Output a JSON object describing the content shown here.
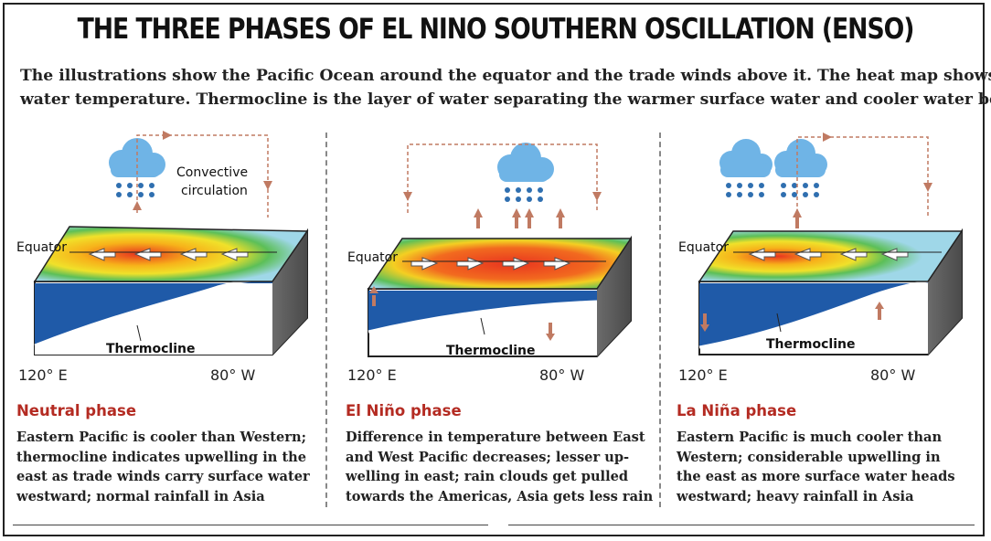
{
  "title": "THE THREE PHASES OF EL NINO SOUTHERN OSCILLATION (ENSO)",
  "subtitle": [
    "The illustrations show the Pacific Ocean around the equator and the trade winds above it. The heat map shows",
    "water temperature. Thermocline is the layer of water separating the warmer surface water and cooler water below"
  ],
  "labels": {
    "equator": "Equator",
    "thermocline": "Thermocline",
    "west": "120° E",
    "east": "80° W",
    "convective": [
      "Convective",
      "circulation"
    ]
  },
  "phases": [
    {
      "name": "Neutral phase",
      "description": [
        "Eastern Pacific is cooler than Western;",
        "thermocline indicates upwelling in the",
        "east as trade winds carry surface water",
        "westward; normal rainfall in Asia"
      ]
    },
    {
      "name": "El Niño phase",
      "description": [
        "Difference in temperature between East",
        "and West Pacific decreases; lesser up-",
        "welling in east; rain clouds get pulled",
        "towards the Americas, Asia gets less rain"
      ]
    },
    {
      "name": "La Niña phase",
      "description": [
        "Eastern Pacific is much cooler than",
        "Western; considerable upwelling in",
        "the east as more surface water heads",
        "westward; heavy rainfall in Asia"
      ]
    }
  ],
  "colors": {
    "phase_title": "#b42b22",
    "circulation": "#c07a62",
    "water": "#1f5aa8",
    "cloud": "#6fb4e6"
  }
}
